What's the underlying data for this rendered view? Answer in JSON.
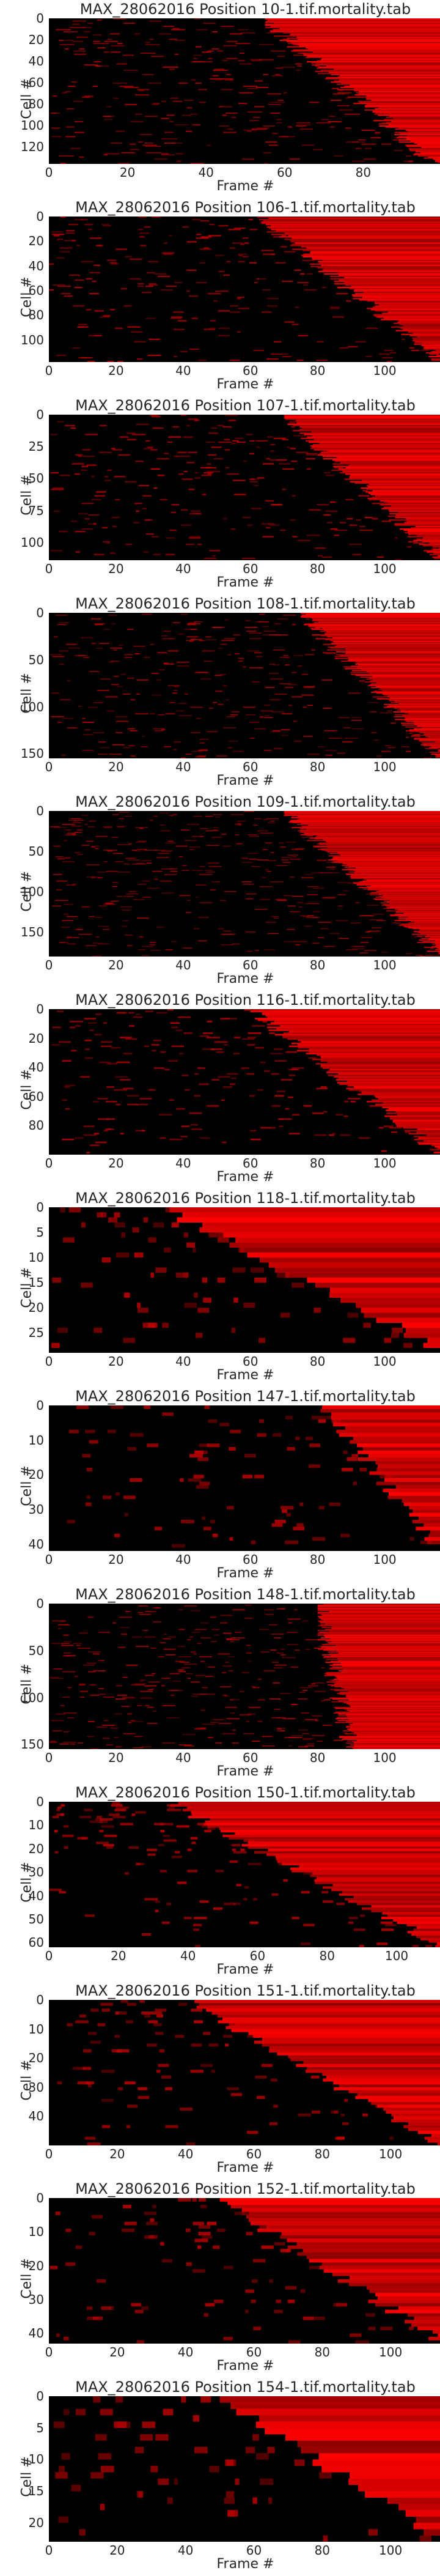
{
  "chart_data": [
    {
      "type": "heatmap",
      "title": "MAX_28062016 Position 10-1.tif.mortality.tab",
      "xlabel": "Frame #",
      "ylabel": "Cell #",
      "xlim": [
        0,
        100
      ],
      "ylim": [
        0,
        136
      ],
      "xticks": [
        0,
        20,
        40,
        60,
        80
      ],
      "yticks": [
        0,
        20,
        40,
        60,
        80,
        100,
        120
      ],
      "n_frames": 100,
      "n_cells": 136,
      "death_frame_range": [
        55,
        98
      ],
      "colormap": [
        "#000000",
        "#ff0000"
      ]
    },
    {
      "type": "heatmap",
      "title": "MAX_28062016 Position 106-1.tif.mortality.tab",
      "xlabel": "Frame #",
      "ylabel": "Cell #",
      "xlim": [
        0,
        117
      ],
      "ylim": [
        0,
        118
      ],
      "xticks": [
        0,
        20,
        40,
        60,
        80,
        100
      ],
      "yticks": [
        0,
        20,
        40,
        60,
        80,
        100
      ],
      "n_frames": 117,
      "n_cells": 118,
      "death_frame_range": [
        62,
        117
      ],
      "colormap": [
        "#000000",
        "#ff0000"
      ]
    },
    {
      "type": "heatmap",
      "title": "MAX_28062016 Position 107-1.tif.mortality.tab",
      "xlabel": "Frame #",
      "ylabel": "Cell #",
      "xlim": [
        0,
        117
      ],
      "ylim": [
        0,
        114
      ],
      "xticks": [
        0,
        20,
        40,
        60,
        80,
        100
      ],
      "yticks": [
        0,
        25,
        50,
        75,
        100
      ],
      "n_frames": 117,
      "n_cells": 114,
      "death_frame_range": [
        70,
        117
      ],
      "colormap": [
        "#000000",
        "#ff0000"
      ]
    },
    {
      "type": "heatmap",
      "title": "MAX_28062016 Position 108-1.tif.mortality.tab",
      "xlabel": "Frame #",
      "ylabel": "Cell #",
      "xlim": [
        0,
        117
      ],
      "ylim": [
        0,
        155
      ],
      "xticks": [
        0,
        20,
        40,
        60,
        80,
        100
      ],
      "yticks": [
        0,
        50,
        100,
        150
      ],
      "n_frames": 117,
      "n_cells": 155,
      "death_frame_range": [
        75,
        117
      ],
      "colormap": [
        "#000000",
        "#ff0000"
      ]
    },
    {
      "type": "heatmap",
      "title": "MAX_28062016 Position 109-1.tif.mortality.tab",
      "xlabel": "Frame #",
      "ylabel": "Cell #",
      "xlim": [
        0,
        117
      ],
      "ylim": [
        0,
        180
      ],
      "xticks": [
        0,
        20,
        40,
        60,
        80,
        100
      ],
      "yticks": [
        0,
        50,
        100,
        150
      ],
      "n_frames": 117,
      "n_cells": 180,
      "death_frame_range": [
        70,
        117
      ],
      "colormap": [
        "#000000",
        "#ff0000"
      ]
    },
    {
      "type": "heatmap",
      "title": "MAX_28062016 Position 116-1.tif.mortality.tab",
      "xlabel": "Frame #",
      "ylabel": "Cell #",
      "xlim": [
        0,
        117
      ],
      "ylim": [
        0,
        100
      ],
      "xticks": [
        0,
        20,
        40,
        60,
        80,
        100
      ],
      "yticks": [
        0,
        20,
        40,
        60,
        80
      ],
      "n_frames": 117,
      "n_cells": 100,
      "death_frame_range": [
        60,
        117
      ],
      "colormap": [
        "#000000",
        "#ff0000"
      ]
    },
    {
      "type": "heatmap",
      "title": "MAX_28062016 Position 118-1.tif.mortality.tab",
      "xlabel": "Frame #",
      "ylabel": "Cell #",
      "xlim": [
        0,
        117
      ],
      "ylim": [
        0,
        29
      ],
      "xticks": [
        0,
        20,
        40,
        60,
        80,
        100
      ],
      "yticks": [
        0,
        5,
        10,
        15,
        20,
        25
      ],
      "n_frames": 117,
      "n_cells": 29,
      "death_frame_range": [
        35,
        117
      ],
      "colormap": [
        "#000000",
        "#ff0000"
      ]
    },
    {
      "type": "heatmap",
      "title": "MAX_28062016 Position 147-1.tif.mortality.tab",
      "xlabel": "Frame #",
      "ylabel": "Cell #",
      "xlim": [
        0,
        117
      ],
      "ylim": [
        0,
        42
      ],
      "xticks": [
        0,
        20,
        40,
        60,
        80,
        100
      ],
      "yticks": [
        0,
        10,
        20,
        30,
        40
      ],
      "n_frames": 117,
      "n_cells": 42,
      "death_frame_range": [
        80,
        117
      ],
      "colormap": [
        "#000000",
        "#ff0000"
      ]
    },
    {
      "type": "heatmap",
      "title": "MAX_28062016 Position 148-1.tif.mortality.tab",
      "xlabel": "Frame #",
      "ylabel": "Cell #",
      "xlim": [
        0,
        117
      ],
      "ylim": [
        0,
        155
      ],
      "xticks": [
        0,
        20,
        40,
        60,
        80,
        100
      ],
      "yticks": [
        0,
        50,
        100,
        150
      ],
      "n_frames": 117,
      "n_cells": 155,
      "death_frame_range": [
        80,
        90
      ],
      "colormap": [
        "#000000",
        "#ff0000"
      ]
    },
    {
      "type": "heatmap",
      "title": "MAX_28062016 Position 150-1.tif.mortality.tab",
      "xlabel": "Frame #",
      "ylabel": "Cell #",
      "xlim": [
        0,
        113
      ],
      "ylim": [
        0,
        62
      ],
      "xticks": [
        0,
        20,
        40,
        60,
        80,
        100
      ],
      "yticks": [
        0,
        10,
        20,
        30,
        40,
        50,
        60
      ],
      "n_frames": 113,
      "n_cells": 62,
      "death_frame_range": [
        35,
        113
      ],
      "colormap": [
        "#000000",
        "#ff0000"
      ]
    },
    {
      "type": "heatmap",
      "title": "MAX_28062016 Position 151-1.tif.mortality.tab",
      "xlabel": "Frame #",
      "ylabel": "Cell #",
      "xlim": [
        0,
        115
      ],
      "ylim": [
        0,
        50
      ],
      "xticks": [
        0,
        20,
        40,
        60,
        80,
        100
      ],
      "yticks": [
        0,
        10,
        20,
        30,
        40
      ],
      "n_frames": 115,
      "n_cells": 50,
      "death_frame_range": [
        40,
        115
      ],
      "colormap": [
        "#000000",
        "#ff0000"
      ]
    },
    {
      "type": "heatmap",
      "title": "MAX_28062016 Position 152-1.tif.mortality.tab",
      "xlabel": "Frame #",
      "ylabel": "Cell #",
      "xlim": [
        0,
        115
      ],
      "ylim": [
        0,
        43
      ],
      "xticks": [
        0,
        20,
        40,
        60,
        80,
        100
      ],
      "yticks": [
        0,
        10,
        20,
        30,
        40
      ],
      "n_frames": 115,
      "n_cells": 43,
      "death_frame_range": [
        50,
        115
      ],
      "colormap": [
        "#000000",
        "#ff0000"
      ]
    },
    {
      "type": "heatmap",
      "title": "MAX_28062016 Position 154-1.tif.mortality.tab",
      "xlabel": "Frame #",
      "ylabel": "Cell #",
      "xlim": [
        0,
        115
      ],
      "ylim": [
        0,
        23
      ],
      "xticks": [
        0,
        20,
        40,
        60,
        80,
        100
      ],
      "yticks": [
        0,
        5,
        10,
        15,
        20
      ],
      "n_frames": 115,
      "n_cells": 23,
      "death_frame_range": [
        50,
        115
      ],
      "colormap": [
        "#000000",
        "#ff0000"
      ]
    }
  ]
}
